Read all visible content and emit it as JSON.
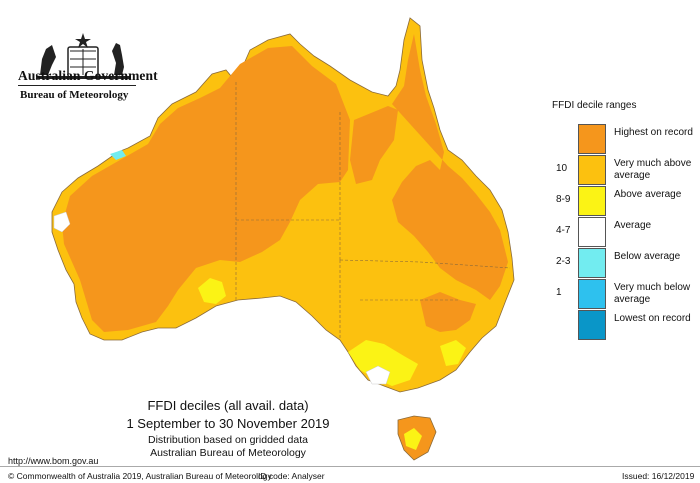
{
  "header": {
    "government": "Australian Government",
    "bureau": "Bureau of Meteorology"
  },
  "legend": {
    "title": "FFDI decile ranges",
    "entries": [
      {
        "label": "Highest on record",
        "value": "",
        "color": "#f5961c"
      },
      {
        "label": "Very much above average",
        "value": "10",
        "color": "#fcc10f"
      },
      {
        "label": "Above average",
        "value": "8-9",
        "color": "#fbf315"
      },
      {
        "label": "Average",
        "value": "4-7",
        "color": "#ffffff"
      },
      {
        "label": "Below average",
        "value": "2-3",
        "color": "#72ecf0"
      },
      {
        "label": "Very much below average",
        "value": "1",
        "color": "#2ec1ee"
      },
      {
        "label": "Lowest on record",
        "value": "",
        "color": "#0a96c8"
      }
    ]
  },
  "caption": {
    "title": "FFDI deciles (all avail. data)",
    "period": "1 September to 30 November 2019",
    "line3": "Distribution based on gridded data",
    "line4": "Australian Bureau of Meteorology"
  },
  "footer": {
    "url": "http://www.bom.gov.au",
    "copyright": "© Commonwealth of Australia 2019, Australian Bureau of Meteorology",
    "id_code": "ID code: Analyser",
    "issued": "Issued: 16/12/2019"
  },
  "map_colors": {
    "highest": "#f5961c",
    "very_much_above": "#fcc10f",
    "above": "#fbf315",
    "average": "#ffffff",
    "below": "#72ecf0",
    "border": "#8a6a3a"
  }
}
